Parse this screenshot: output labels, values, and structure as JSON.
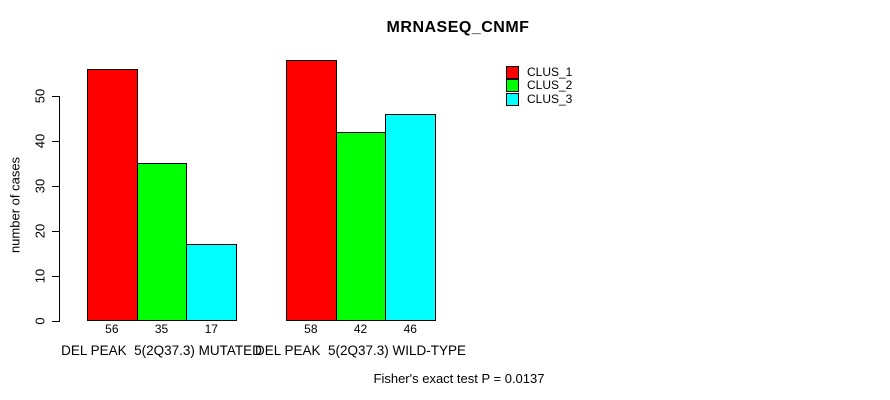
{
  "chart_data": {
    "type": "bar",
    "title": "MRNASEQ_CNMF",
    "ylabel": "number of cases",
    "xlabel": "",
    "categories": [
      "DEL PEAK  5(2Q37.3) MUTATED",
      "DEL PEAK  5(2Q37.3) WILD-TYPE"
    ],
    "series": [
      {
        "name": "CLUS_1",
        "color": "#FF0000",
        "values": [
          56,
          58
        ]
      },
      {
        "name": "CLUS_2",
        "color": "#00FF00",
        "values": [
          35,
          42
        ]
      },
      {
        "name": "CLUS_3",
        "color": "#00FFFF",
        "values": [
          17,
          46
        ]
      }
    ],
    "bar_value_labels": [
      [
        56,
        35,
        17
      ],
      [
        58,
        42,
        46
      ]
    ],
    "yticks": [
      0,
      10,
      20,
      30,
      40,
      50
    ],
    "ylim": [
      0,
      58
    ],
    "grid": false,
    "legend_position": "top-right",
    "legend": [
      {
        "label": "CLUS_1",
        "color": "#FF0000"
      },
      {
        "label": "CLUS_2",
        "color": "#00FF00"
      },
      {
        "label": "CLUS_3",
        "color": "#00FFFF"
      }
    ],
    "annotation": "Fisher's exact test P = 0.0137"
  }
}
